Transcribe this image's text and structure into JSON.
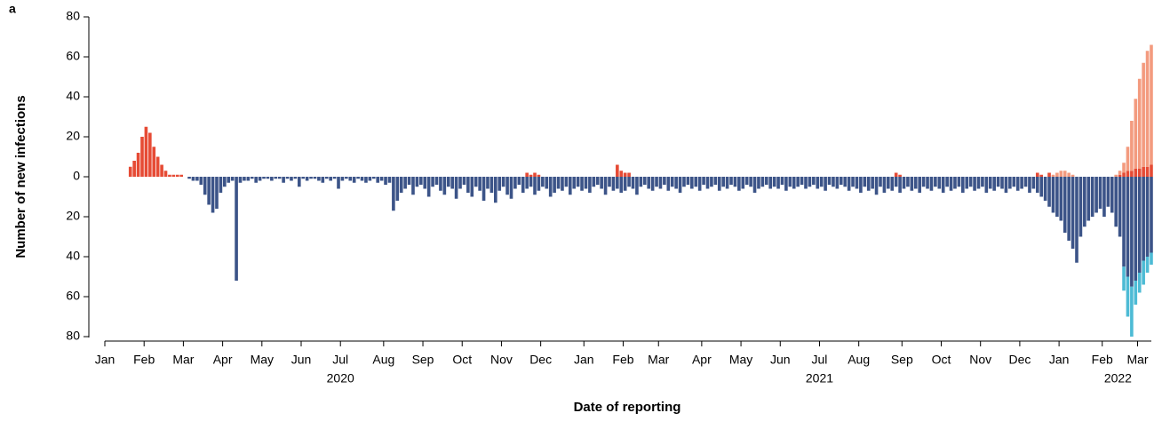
{
  "chart_data": {
    "type": "diverging_bar",
    "panel_label": "a",
    "xlabel": "Date of reporting",
    "ylabel": "Number of new infections",
    "ylim": [
      -80,
      80
    ],
    "yticks": [
      {
        "value": -80,
        "label": "80"
      },
      {
        "value": -60,
        "label": "60"
      },
      {
        "value": -40,
        "label": "40"
      },
      {
        "value": -20,
        "label": "20"
      },
      0,
      20,
      40,
      60,
      80
    ],
    "years": [
      "2020",
      "2021",
      "2022"
    ],
    "categories": [
      "Jan",
      null,
      null,
      null,
      null,
      null,
      null,
      null,
      null,
      null,
      "Feb",
      null,
      null,
      null,
      null,
      null,
      null,
      null,
      null,
      null,
      "Mar",
      null,
      null,
      null,
      null,
      null,
      null,
      null,
      null,
      null,
      "Apr",
      null,
      null,
      null,
      null,
      null,
      null,
      null,
      null,
      null,
      "May",
      null,
      null,
      null,
      null,
      null,
      null,
      null,
      null,
      null,
      "Jun",
      null,
      null,
      null,
      null,
      null,
      null,
      null,
      null,
      null,
      "Jul",
      null,
      null,
      null,
      null,
      null,
      null,
      null,
      null,
      null,
      null,
      "Aug",
      null,
      null,
      null,
      null,
      null,
      null,
      null,
      null,
      null,
      "Sep",
      null,
      null,
      null,
      null,
      null,
      null,
      null,
      null,
      null,
      "Oct",
      null,
      null,
      null,
      null,
      null,
      null,
      null,
      null,
      null,
      "Nov",
      null,
      null,
      null,
      null,
      null,
      null,
      null,
      null,
      null,
      "Dec",
      null,
      null,
      null,
      null,
      null,
      null,
      null,
      null,
      null,
      null,
      "Jan",
      null,
      null,
      null,
      null,
      null,
      null,
      null,
      null,
      null,
      "Feb",
      null,
      null,
      null,
      null,
      null,
      null,
      null,
      null,
      "Mar",
      null,
      null,
      null,
      null,
      null,
      null,
      null,
      null,
      null,
      null,
      "Apr",
      null,
      null,
      null,
      null,
      null,
      null,
      null,
      null,
      null,
      "May",
      null,
      null,
      null,
      null,
      null,
      null,
      null,
      null,
      null,
      "Jun",
      null,
      null,
      null,
      null,
      null,
      null,
      null,
      null,
      null,
      "Jul",
      null,
      null,
      null,
      null,
      null,
      null,
      null,
      null,
      null,
      "Aug",
      null,
      null,
      null,
      null,
      null,
      null,
      null,
      null,
      null,
      null,
      "Sep",
      null,
      null,
      null,
      null,
      null,
      null,
      null,
      null,
      null,
      "Oct",
      null,
      null,
      null,
      null,
      null,
      null,
      null,
      null,
      null,
      "Nov",
      null,
      null,
      null,
      null,
      null,
      null,
      null,
      null,
      null,
      "Dec",
      null,
      null,
      null,
      null,
      null,
      null,
      null,
      null,
      null,
      "Jan",
      null,
      null,
      null,
      null,
      null,
      null,
      null,
      null,
      null,
      null,
      "Feb",
      null,
      null,
      null,
      null,
      null,
      null,
      null,
      null,
      "Mar",
      null,
      null,
      null
    ],
    "series": [
      {
        "color": "#e64b35",
        "stack": "up",
        "values": [
          0,
          0,
          0,
          0,
          0,
          0,
          5,
          8,
          12,
          20,
          25,
          22,
          15,
          10,
          6,
          3,
          1,
          1,
          1,
          1,
          0,
          0,
          0,
          0,
          0,
          0,
          0,
          0,
          0,
          0,
          0,
          0,
          0,
          0,
          0,
          0,
          0,
          0,
          0,
          0,
          0,
          0,
          0,
          0,
          0,
          0,
          0,
          0,
          0,
          0,
          0,
          0,
          0,
          0,
          0,
          0,
          0,
          0,
          0,
          0,
          0,
          0,
          0,
          0,
          0,
          0,
          0,
          0,
          0,
          0,
          0,
          0,
          0,
          0,
          0,
          0,
          0,
          0,
          0,
          0,
          0,
          0,
          0,
          0,
          0,
          0,
          0,
          0,
          0,
          0,
          0,
          0,
          0,
          0,
          0,
          0,
          0,
          0,
          0,
          0,
          0,
          0,
          0,
          0,
          0,
          0,
          0,
          2,
          1,
          2,
          1,
          0,
          0,
          0,
          0,
          0,
          0,
          0,
          0,
          0,
          0,
          0,
          0,
          0,
          0,
          0,
          0,
          0,
          0,
          0,
          6,
          3,
          2,
          2,
          0,
          0,
          0,
          0,
          0,
          0,
          0,
          0,
          0,
          0,
          0,
          0,
          0,
          0,
          0,
          0,
          0,
          0,
          0,
          0,
          0,
          0,
          0,
          0,
          0,
          0,
          0,
          0,
          0,
          0,
          0,
          0,
          0,
          0,
          0,
          0,
          0,
          0,
          0,
          0,
          0,
          0,
          0,
          0,
          0,
          0,
          0,
          0,
          0,
          0,
          0,
          0,
          0,
          0,
          0,
          0,
          0,
          0,
          0,
          0,
          0,
          0,
          0,
          0,
          0,
          0,
          0,
          2,
          1,
          0,
          0,
          0,
          0,
          0,
          0,
          0,
          0,
          0,
          0,
          0,
          0,
          0,
          0,
          0,
          0,
          0,
          0,
          0,
          0,
          0,
          0,
          0,
          0,
          0,
          0,
          0,
          0,
          0,
          0,
          0,
          0,
          0,
          0,
          2,
          1,
          0,
          2,
          0,
          0,
          0,
          0,
          0,
          0,
          0,
          0,
          0,
          0,
          0,
          0,
          0,
          0,
          0,
          0,
          0,
          1,
          2,
          3,
          3,
          4,
          4,
          5,
          5,
          6
        ]
      },
      {
        "color": "#f39b7f",
        "stack": "up",
        "values": [
          0,
          0,
          0,
          0,
          0,
          0,
          0,
          0,
          0,
          0,
          0,
          0,
          0,
          0,
          0,
          0,
          0,
          0,
          0,
          0,
          0,
          0,
          0,
          0,
          0,
          0,
          0,
          0,
          0,
          0,
          0,
          0,
          0,
          0,
          0,
          0,
          0,
          0,
          0,
          0,
          0,
          0,
          0,
          0,
          0,
          0,
          0,
          0,
          0,
          0,
          0,
          0,
          0,
          0,
          0,
          0,
          0,
          0,
          0,
          0,
          0,
          0,
          0,
          0,
          0,
          0,
          0,
          0,
          0,
          0,
          0,
          0,
          0,
          0,
          0,
          0,
          0,
          0,
          0,
          0,
          0,
          0,
          0,
          0,
          0,
          0,
          0,
          0,
          0,
          0,
          0,
          0,
          0,
          0,
          0,
          0,
          0,
          0,
          0,
          0,
          0,
          0,
          0,
          0,
          0,
          0,
          0,
          0,
          0,
          0,
          0,
          0,
          0,
          0,
          0,
          0,
          0,
          0,
          0,
          0,
          0,
          0,
          0,
          0,
          0,
          0,
          0,
          0,
          0,
          0,
          0,
          0,
          0,
          0,
          0,
          0,
          0,
          0,
          0,
          0,
          0,
          0,
          0,
          0,
          0,
          0,
          0,
          0,
          0,
          0,
          0,
          0,
          0,
          0,
          0,
          0,
          0,
          0,
          0,
          0,
          0,
          0,
          0,
          0,
          0,
          0,
          0,
          0,
          0,
          0,
          0,
          0,
          0,
          0,
          0,
          0,
          0,
          0,
          0,
          0,
          0,
          0,
          0,
          0,
          0,
          0,
          0,
          0,
          0,
          0,
          0,
          0,
          0,
          0,
          0,
          0,
          0,
          0,
          0,
          0,
          0,
          0,
          0,
          0,
          0,
          0,
          0,
          0,
          0,
          0,
          0,
          0,
          0,
          0,
          0,
          0,
          0,
          0,
          0,
          0,
          0,
          0,
          0,
          0,
          0,
          0,
          0,
          0,
          0,
          0,
          0,
          0,
          0,
          0,
          0,
          0,
          0,
          0,
          0,
          0,
          0,
          1,
          2,
          3,
          3,
          2,
          1,
          0,
          0,
          0,
          0,
          0,
          0,
          0,
          0,
          0,
          0,
          1,
          2,
          5,
          12,
          25,
          35,
          45,
          52,
          58,
          60
        ]
      },
      {
        "color": "#3c5488",
        "stack": "down",
        "values": [
          0,
          0,
          0,
          0,
          0,
          0,
          0,
          0,
          0,
          0,
          0,
          0,
          0,
          0,
          0,
          0,
          0,
          0,
          0,
          0,
          0,
          -1,
          -2,
          -2,
          -4,
          -9,
          -14,
          -18,
          -16,
          -8,
          -5,
          -3,
          -2,
          -52,
          -3,
          -2,
          -2,
          -1,
          -3,
          -2,
          -1,
          -1,
          -2,
          -1,
          -1,
          -3,
          -1,
          -2,
          -1,
          -5,
          -1,
          -2,
          -1,
          -1,
          -2,
          -3,
          -1,
          -2,
          -1,
          -6,
          -2,
          -1,
          -2,
          -3,
          -1,
          -2,
          -3,
          -2,
          -1,
          -3,
          -2,
          -4,
          -3,
          -17,
          -12,
          -8,
          -6,
          -4,
          -9,
          -5,
          -4,
          -6,
          -10,
          -5,
          -4,
          -7,
          -9,
          -5,
          -6,
          -11,
          -6,
          -4,
          -8,
          -10,
          -5,
          -7,
          -12,
          -6,
          -8,
          -13,
          -7,
          -5,
          -9,
          -11,
          -6,
          -4,
          -8,
          -6,
          -5,
          -9,
          -7,
          -5,
          -6,
          -10,
          -8,
          -6,
          -7,
          -5,
          -9,
          -6,
          -5,
          -7,
          -6,
          -8,
          -5,
          -4,
          -6,
          -9,
          -5,
          -7,
          -6,
          -8,
          -7,
          -5,
          -6,
          -9,
          -5,
          -4,
          -6,
          -7,
          -5,
          -6,
          -4,
          -7,
          -5,
          -6,
          -8,
          -5,
          -4,
          -6,
          -5,
          -7,
          -4,
          -6,
          -5,
          -4,
          -7,
          -5,
          -6,
          -4,
          -5,
          -7,
          -6,
          -4,
          -5,
          -8,
          -6,
          -5,
          -4,
          -6,
          -5,
          -6,
          -4,
          -7,
          -5,
          -6,
          -5,
          -4,
          -6,
          -5,
          -4,
          -6,
          -5,
          -7,
          -4,
          -5,
          -6,
          -4,
          -5,
          -7,
          -5,
          -6,
          -8,
          -5,
          -7,
          -6,
          -9,
          -5,
          -8,
          -6,
          -7,
          -5,
          -8,
          -6,
          -5,
          -7,
          -6,
          -8,
          -5,
          -6,
          -7,
          -5,
          -6,
          -8,
          -5,
          -7,
          -6,
          -5,
          -8,
          -6,
          -5,
          -7,
          -6,
          -5,
          -8,
          -6,
          -7,
          -5,
          -6,
          -8,
          -6,
          -5,
          -7,
          -6,
          -5,
          -8,
          -6,
          -8,
          -10,
          -12,
          -15,
          -18,
          -20,
          -22,
          -28,
          -32,
          -36,
          -43,
          -30,
          -25,
          -22,
          -20,
          -18,
          -16,
          -20,
          -15,
          -18,
          -25,
          -30,
          -45,
          -50,
          -55,
          -52,
          -48,
          -42,
          -40,
          -38
        ]
      },
      {
        "color": "#4dbbd5",
        "stack": "down",
        "values": [
          0,
          0,
          0,
          0,
          0,
          0,
          0,
          0,
          0,
          0,
          0,
          0,
          0,
          0,
          0,
          0,
          0,
          0,
          0,
          0,
          0,
          0,
          0,
          0,
          0,
          0,
          0,
          0,
          0,
          0,
          0,
          0,
          0,
          0,
          0,
          0,
          0,
          0,
          0,
          0,
          0,
          0,
          0,
          0,
          0,
          0,
          0,
          0,
          0,
          0,
          0,
          0,
          0,
          0,
          0,
          0,
          0,
          0,
          0,
          0,
          0,
          0,
          0,
          0,
          0,
          0,
          0,
          0,
          0,
          0,
          0,
          0,
          0,
          0,
          0,
          0,
          0,
          0,
          0,
          0,
          0,
          0,
          0,
          0,
          0,
          0,
          0,
          0,
          0,
          0,
          0,
          0,
          0,
          0,
          0,
          0,
          0,
          0,
          0,
          0,
          0,
          0,
          0,
          0,
          0,
          0,
          0,
          0,
          0,
          0,
          0,
          0,
          0,
          0,
          0,
          0,
          0,
          0,
          0,
          0,
          0,
          0,
          0,
          0,
          0,
          0,
          0,
          0,
          0,
          0,
          0,
          0,
          0,
          0,
          0,
          0,
          0,
          0,
          0,
          0,
          0,
          0,
          0,
          0,
          0,
          0,
          0,
          0,
          0,
          0,
          0,
          0,
          0,
          0,
          0,
          0,
          0,
          0,
          0,
          0,
          0,
          0,
          0,
          0,
          0,
          0,
          0,
          0,
          0,
          0,
          0,
          0,
          0,
          0,
          0,
          0,
          0,
          0,
          0,
          0,
          0,
          0,
          0,
          0,
          0,
          0,
          0,
          0,
          0,
          0,
          0,
          0,
          0,
          0,
          0,
          0,
          0,
          0,
          0,
          0,
          0,
          0,
          0,
          0,
          0,
          0,
          0,
          0,
          0,
          0,
          0,
          0,
          0,
          0,
          0,
          0,
          0,
          0,
          0,
          0,
          0,
          0,
          0,
          0,
          0,
          0,
          0,
          0,
          0,
          0,
          0,
          0,
          0,
          0,
          0,
          0,
          0,
          0,
          0,
          0,
          0,
          0,
          0,
          0,
          0,
          0,
          0,
          0,
          0,
          0,
          0,
          0,
          0,
          0,
          0,
          0,
          0,
          0,
          0,
          -12,
          -20,
          -25,
          -12,
          -10,
          -12,
          -8,
          -6
        ]
      }
    ]
  }
}
